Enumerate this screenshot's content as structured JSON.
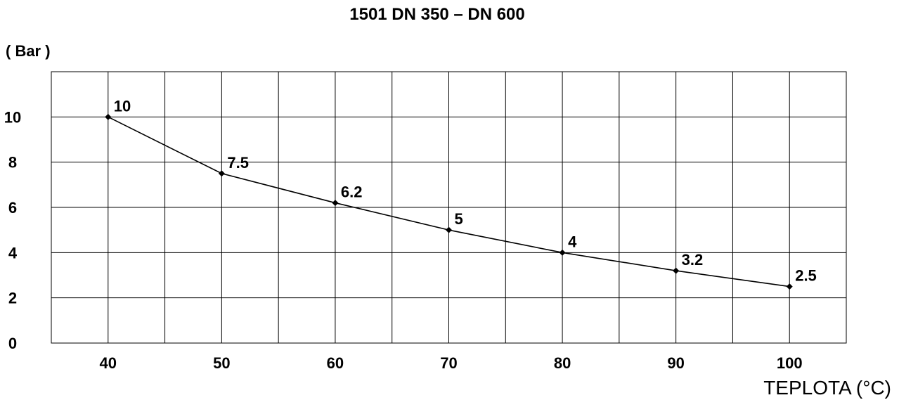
{
  "chart_data": {
    "type": "line",
    "title": "1501 DN 350 – DN 600",
    "ylabel": "( Bar )",
    "xlabel": "TEPLOTA (°C)",
    "x_ticks": [
      "40",
      "50",
      "60",
      "70",
      "80",
      "90",
      "100"
    ],
    "y_ticks": [
      "0",
      "2",
      "4",
      "6",
      "8",
      "10"
    ],
    "xlim": [
      35,
      105
    ],
    "ylim": [
      0,
      12
    ],
    "grid": true,
    "series": [
      {
        "x": [
          40,
          50,
          60,
          70,
          80,
          90,
          100
        ],
        "values": [
          10,
          7.5,
          6.2,
          5,
          4,
          3.2,
          2.5
        ],
        "labels": [
          "10",
          "7.5",
          "6.2",
          "5",
          "4",
          "3.2",
          "2.5"
        ]
      }
    ]
  }
}
